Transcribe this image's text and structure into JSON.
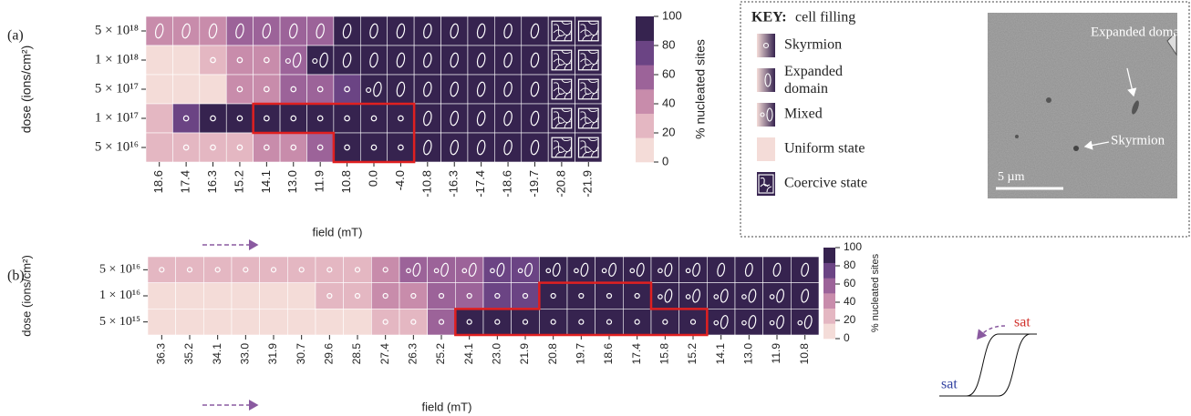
{
  "chart_data": [
    {
      "type": "heatmap",
      "panel": "(a)",
      "ylabel": "dose (ions/cm²)",
      "xlabel": "field (mT)",
      "colorbar_label": "% nucleated sites",
      "colors": [
        "#f4dcd8",
        "#e4b7c2",
        "#c88cab",
        "#9c6399",
        "#6b4484",
        "#36234f"
      ],
      "clim": [
        0,
        100
      ],
      "cticks": [
        0,
        20,
        40,
        60,
        80,
        100
      ],
      "rows": [
        "5 × 10¹⁸",
        "1 × 10¹⁸",
        "5 × 10¹⁷",
        "1 × 10¹⁷",
        "5 × 10¹⁶"
      ],
      "categories": [
        "18.6",
        "17.4",
        "16.3",
        "15.2",
        "14.1",
        "13.0",
        "11.9",
        "10.8",
        "0.0",
        "-4.0",
        "-10.8",
        "-16.3",
        "-17.4",
        "-18.6",
        "-19.7",
        "-20.8",
        "-21.9"
      ],
      "values": [
        [
          40,
          40,
          40,
          60,
          60,
          60,
          60,
          100,
          100,
          100,
          100,
          100,
          100,
          100,
          100,
          100,
          100
        ],
        [
          0,
          0,
          20,
          40,
          40,
          60,
          100,
          100,
          100,
          100,
          100,
          100,
          100,
          100,
          100,
          100,
          100
        ],
        [
          0,
          0,
          0,
          40,
          40,
          60,
          60,
          80,
          100,
          100,
          100,
          100,
          100,
          100,
          100,
          100,
          100
        ],
        [
          20,
          80,
          100,
          100,
          100,
          100,
          100,
          100,
          100,
          100,
          100,
          100,
          100,
          100,
          100,
          100,
          100
        ],
        [
          10,
          20,
          20,
          20,
          40,
          40,
          60,
          100,
          100,
          100,
          100,
          100,
          100,
          100,
          100,
          100,
          100
        ]
      ],
      "fill": [
        [
          1,
          1,
          1,
          1,
          1,
          1,
          1,
          1,
          1,
          1,
          1,
          1,
          1,
          1,
          1,
          4,
          4
        ],
        [
          3,
          3,
          0,
          0,
          0,
          2,
          2,
          1,
          1,
          1,
          1,
          1,
          1,
          1,
          1,
          4,
          4
        ],
        [
          3,
          3,
          3,
          0,
          0,
          0,
          0,
          0,
          2,
          1,
          1,
          1,
          1,
          1,
          1,
          4,
          4
        ],
        [
          3,
          0,
          0,
          0,
          0,
          0,
          0,
          0,
          0,
          0,
          1,
          1,
          1,
          1,
          1,
          4,
          4
        ],
        [
          3,
          0,
          0,
          0,
          0,
          0,
          0,
          0,
          0,
          0,
          1,
          1,
          1,
          1,
          1,
          4,
          4
        ]
      ]
    },
    {
      "type": "heatmap",
      "panel": "(b)",
      "ylabel": "dose (ions/cm²)",
      "xlabel": "field (mT)",
      "colorbar_label": "% nucleated sites",
      "colors": [
        "#f4dcd8",
        "#e4b7c2",
        "#c88cab",
        "#9c6399",
        "#6b4484",
        "#36234f"
      ],
      "clim": [
        0,
        100
      ],
      "cticks": [
        0,
        20,
        40,
        60,
        80,
        100
      ],
      "rows": [
        "5 × 10¹⁶",
        "1 × 10¹⁶",
        "5 × 10¹⁵"
      ],
      "categories": [
        "36.3",
        "35.2",
        "34.1",
        "33.0",
        "31.9",
        "30.7",
        "29.6",
        "28.5",
        "27.4",
        "26.3",
        "25.2",
        "24.1",
        "23.0",
        "21.9",
        "20.8",
        "19.7",
        "18.6",
        "17.4",
        "15.8",
        "15.2",
        "14.1",
        "13.0",
        "11.9",
        "10.8"
      ],
      "values": [
        [
          20,
          20,
          20,
          20,
          20,
          20,
          20,
          20,
          40,
          60,
          60,
          60,
          80,
          80,
          100,
          100,
          100,
          100,
          100,
          100,
          100,
          100,
          100,
          100
        ],
        [
          0,
          0,
          0,
          0,
          0,
          0,
          20,
          20,
          40,
          40,
          60,
          60,
          80,
          80,
          100,
          100,
          100,
          100,
          100,
          100,
          100,
          100,
          100,
          100
        ],
        [
          0,
          0,
          0,
          0,
          0,
          0,
          0,
          0,
          20,
          20,
          60,
          100,
          100,
          100,
          100,
          100,
          100,
          100,
          100,
          100,
          100,
          100,
          100,
          100
        ]
      ],
      "fill": [
        [
          0,
          0,
          0,
          0,
          0,
          0,
          0,
          0,
          0,
          2,
          2,
          2,
          2,
          2,
          2,
          2,
          2,
          2,
          2,
          2,
          1,
          1,
          1,
          1
        ],
        [
          3,
          3,
          3,
          3,
          3,
          3,
          0,
          0,
          0,
          0,
          0,
          0,
          0,
          0,
          0,
          0,
          0,
          0,
          2,
          2,
          2,
          2,
          2,
          1
        ],
        [
          3,
          3,
          3,
          3,
          3,
          3,
          3,
          3,
          0,
          0,
          0,
          0,
          0,
          0,
          0,
          0,
          0,
          0,
          0,
          0,
          2,
          2,
          2,
          2
        ]
      ]
    }
  ],
  "key": {
    "title": "KEY:",
    "subtitle": "cell filling",
    "items": [
      "Skyrmion",
      "Expanded domain",
      "Mixed",
      "Uniform state",
      "Coercive state"
    ]
  },
  "micrograph": {
    "labels": [
      "Expanded domain",
      "Skyrmion"
    ],
    "scale": "5 µm"
  },
  "hysteresis": {
    "labels": [
      "sat",
      "sat"
    ]
  }
}
